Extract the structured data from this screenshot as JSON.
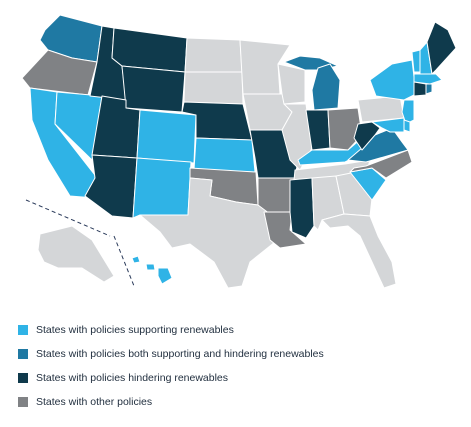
{
  "colors": {
    "supporting": "#2fb3e6",
    "both": "#1f79a3",
    "hindering": "#0f3a4c",
    "other": "#808285",
    "no_policy": "#d4d6d8",
    "boundary_dash": "#2a3a5a"
  },
  "legend": [
    {
      "category": "supporting",
      "label": "States with policies supporting renewables",
      "icon": "square-swatch"
    },
    {
      "category": "both",
      "label": "States with policies both supporting and hindering renewables",
      "icon": "square-swatch"
    },
    {
      "category": "hindering",
      "label": "States with policies hindering renewables",
      "icon": "square-swatch"
    },
    {
      "category": "other",
      "label": "States with other policies",
      "icon": "square-swatch"
    }
  ],
  "states": [
    {
      "code": "WA",
      "category": "both"
    },
    {
      "code": "OR",
      "category": "other"
    },
    {
      "code": "CA",
      "category": "supporting"
    },
    {
      "code": "NV",
      "category": "supporting"
    },
    {
      "code": "ID",
      "category": "hindering"
    },
    {
      "code": "MT",
      "category": "hindering"
    },
    {
      "code": "WY",
      "category": "hindering"
    },
    {
      "code": "UT",
      "category": "hindering"
    },
    {
      "code": "AZ",
      "category": "hindering"
    },
    {
      "code": "CO",
      "category": "supporting"
    },
    {
      "code": "NM",
      "category": "supporting"
    },
    {
      "code": "ND",
      "category": "no_policy"
    },
    {
      "code": "SD",
      "category": "no_policy"
    },
    {
      "code": "NE",
      "category": "hindering"
    },
    {
      "code": "KS",
      "category": "supporting"
    },
    {
      "code": "OK",
      "category": "other"
    },
    {
      "code": "TX",
      "category": "no_policy"
    },
    {
      "code": "MN",
      "category": "no_policy"
    },
    {
      "code": "IA",
      "category": "no_policy"
    },
    {
      "code": "MO",
      "category": "hindering"
    },
    {
      "code": "AR",
      "category": "other"
    },
    {
      "code": "LA",
      "category": "other"
    },
    {
      "code": "WI",
      "category": "no_policy"
    },
    {
      "code": "IL",
      "category": "no_policy"
    },
    {
      "code": "MI",
      "category": "both"
    },
    {
      "code": "MI-UP",
      "category": "both"
    },
    {
      "code": "IN",
      "category": "hindering"
    },
    {
      "code": "OH",
      "category": "other"
    },
    {
      "code": "KY",
      "category": "supporting"
    },
    {
      "code": "TN",
      "category": "no_policy"
    },
    {
      "code": "MS",
      "category": "hindering"
    },
    {
      "code": "AL",
      "category": "no_policy"
    },
    {
      "code": "GA",
      "category": "no_policy"
    },
    {
      "code": "FL",
      "category": "no_policy"
    },
    {
      "code": "SC",
      "category": "supporting"
    },
    {
      "code": "NC",
      "category": "other"
    },
    {
      "code": "VA",
      "category": "both"
    },
    {
      "code": "WV",
      "category": "hindering"
    },
    {
      "code": "PA",
      "category": "no_policy"
    },
    {
      "code": "NY",
      "category": "supporting"
    },
    {
      "code": "VT",
      "category": "supporting"
    },
    {
      "code": "NH",
      "category": "supporting"
    },
    {
      "code": "ME",
      "category": "hindering"
    },
    {
      "code": "MA",
      "category": "supporting"
    },
    {
      "code": "CT",
      "category": "hindering"
    },
    {
      "code": "RI",
      "category": "both"
    },
    {
      "code": "NJ",
      "category": "supporting"
    },
    {
      "code": "DE",
      "category": "supporting"
    },
    {
      "code": "MD",
      "category": "supporting"
    },
    {
      "code": "AK",
      "category": "no_policy"
    },
    {
      "code": "HI",
      "category": "supporting"
    }
  ]
}
